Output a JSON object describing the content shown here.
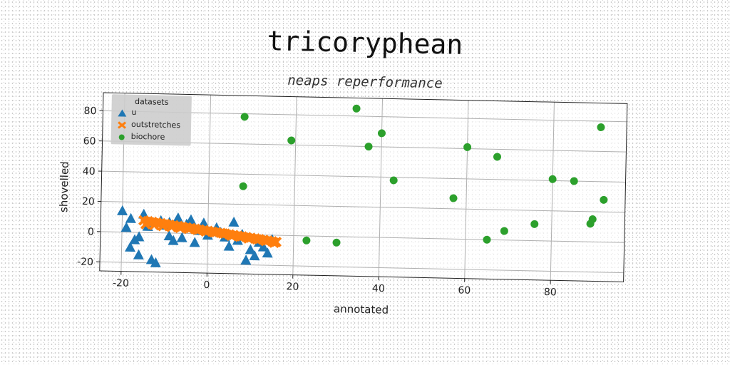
{
  "chart_data": {
    "type": "scatter",
    "title": "tricoryphean",
    "subtitle": "neaps reperformance",
    "xlabel": "annotated",
    "ylabel": "shovelled",
    "xlim": [
      -25,
      97
    ],
    "ylim": [
      -26,
      92
    ],
    "xticks": [
      -20,
      0,
      20,
      40,
      60,
      80
    ],
    "yticks": [
      -20,
      0,
      20,
      40,
      60,
      80
    ],
    "grid": true,
    "legend": {
      "title": "datasets",
      "placement": "top-left"
    },
    "series": [
      {
        "name": "u",
        "marker": "triangle",
        "color": "#1f77b4",
        "points": [
          [
            -19,
            3
          ],
          [
            -18,
            9
          ],
          [
            -20,
            14
          ],
          [
            -17,
            -5
          ],
          [
            -16,
            -3
          ],
          [
            -18,
            -10
          ],
          [
            -16,
            -15
          ],
          [
            -15,
            12
          ],
          [
            -14,
            4
          ],
          [
            -13,
            -18
          ],
          [
            -12,
            -20
          ],
          [
            -11,
            8
          ],
          [
            -10,
            5
          ],
          [
            -9,
            -2
          ],
          [
            -8,
            -5
          ],
          [
            -7,
            10
          ],
          [
            -6,
            -3
          ],
          [
            -5,
            6
          ],
          [
            -4,
            9
          ],
          [
            -3,
            -6
          ],
          [
            -2,
            2
          ],
          [
            0,
            -1
          ],
          [
            2,
            4
          ],
          [
            4,
            -2
          ],
          [
            6,
            8
          ],
          [
            7,
            -4
          ],
          [
            8,
            0
          ],
          [
            9,
            -17
          ],
          [
            10,
            -10
          ],
          [
            11,
            -14
          ],
          [
            12,
            -5
          ],
          [
            13,
            -8
          ],
          [
            14,
            -12
          ],
          [
            15,
            -3
          ],
          [
            5,
            -8
          ],
          [
            -1,
            7
          ],
          [
            3,
            1
          ],
          [
            -9,
            7
          ]
        ]
      },
      {
        "name": "outstretches",
        "marker": "x",
        "color": "#ff7f0e",
        "points": [
          [
            -15,
            8
          ],
          [
            -14,
            7.6
          ],
          [
            -13,
            7.2
          ],
          [
            -12,
            6.8
          ],
          [
            -11,
            6.4
          ],
          [
            -10,
            6
          ],
          [
            -9,
            5.6
          ],
          [
            -8,
            5.2
          ],
          [
            -7,
            4.8
          ],
          [
            -6,
            4.4
          ],
          [
            -5,
            4
          ],
          [
            -4,
            3.6
          ],
          [
            -3,
            3.2
          ],
          [
            -2,
            2.8
          ],
          [
            -1,
            2.4
          ],
          [
            0,
            2
          ],
          [
            1,
            1.6
          ],
          [
            2,
            1.2
          ],
          [
            3,
            0.8
          ],
          [
            4,
            0.4
          ],
          [
            5,
            0
          ],
          [
            6,
            -0.4
          ],
          [
            7,
            -0.8
          ],
          [
            8,
            -1.2
          ],
          [
            9,
            -1.6
          ],
          [
            10,
            -2
          ],
          [
            11,
            -2.4
          ],
          [
            12,
            -2.8
          ],
          [
            13,
            -3.2
          ],
          [
            14,
            -3.6
          ],
          [
            15,
            -4
          ],
          [
            16,
            -4.4
          ],
          [
            -14.5,
            5.5
          ],
          [
            -12.5,
            5
          ],
          [
            -10.5,
            4.5
          ],
          [
            -8.5,
            4
          ],
          [
            -6.5,
            3.5
          ],
          [
            -4.5,
            3
          ],
          [
            -2.5,
            2.5
          ],
          [
            -0.5,
            1.5
          ],
          [
            1.5,
            1
          ],
          [
            3.5,
            0.5
          ],
          [
            5.5,
            -1
          ],
          [
            7.5,
            -1.5
          ],
          [
            9.5,
            -2.5
          ],
          [
            11.5,
            -3
          ],
          [
            13.5,
            -4
          ],
          [
            15.5,
            -5
          ]
        ]
      },
      {
        "name": "biochore",
        "marker": "circle",
        "color": "#2ca02c",
        "points": [
          [
            8,
            78
          ],
          [
            8,
            32
          ],
          [
            19,
            63
          ],
          [
            23,
            -3
          ],
          [
            30,
            -4
          ],
          [
            34,
            85
          ],
          [
            37,
            60
          ],
          [
            40,
            69
          ],
          [
            43,
            38
          ],
          [
            57,
            27
          ],
          [
            60,
            61
          ],
          [
            67,
            55
          ],
          [
            65,
            0
          ],
          [
            69,
            6
          ],
          [
            76,
            11
          ],
          [
            80,
            41
          ],
          [
            85,
            40
          ],
          [
            89,
            12
          ],
          [
            89.5,
            15
          ],
          [
            91,
            76
          ],
          [
            92,
            28
          ]
        ]
      }
    ]
  }
}
